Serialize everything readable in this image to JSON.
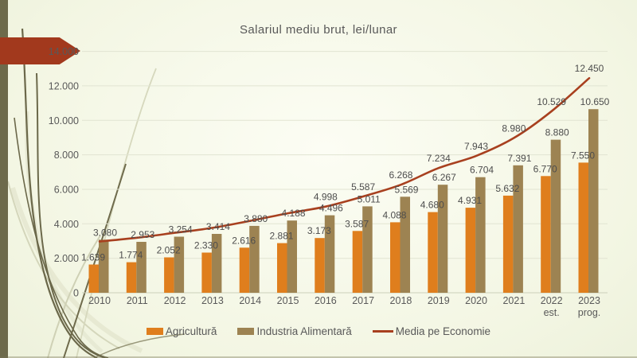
{
  "chart_data": {
    "type": "bar",
    "combo": "grouped bars with smoothed line overlay",
    "title": "Salariul mediu brut, lei/lunar",
    "categories": [
      "2010",
      "2011",
      "2012",
      "2013",
      "2014",
      "2015",
      "2016",
      "2017",
      "2018",
      "2019",
      "2020",
      "2021",
      "2022\nest.",
      "2023\nprog."
    ],
    "series": [
      {
        "name": "Agricultură",
        "type": "bar",
        "color": "#df7e1d",
        "values": [
          1639,
          1774,
          2052,
          2330,
          2616,
          2881,
          3173,
          3587,
          4088,
          4680,
          4931,
          5632,
          6770,
          7550
        ],
        "labels": [
          "1.639",
          "1.774",
          "2.052",
          "2.330",
          "2.616",
          "2.881",
          "3.173",
          "3.587",
          "4.088",
          "4.680",
          "4.931",
          "5.632",
          "6.770",
          "7.550"
        ]
      },
      {
        "name": "Industria Alimentară",
        "type": "bar",
        "color": "#9d8352",
        "values": [
          3080,
          2953,
          3254,
          3414,
          3880,
          4188,
          4496,
          5011,
          5569,
          6267,
          6704,
          7391,
          8880,
          10650
        ],
        "labels": [
          "3.080",
          "2.953",
          "3.254",
          "3.414",
          "3.880",
          "4.188",
          "4.496",
          "5.011",
          "5.569",
          "6.267",
          "6.704",
          "7.391",
          "8.880",
          "10.650"
        ]
      },
      {
        "name": "Media pe Economie",
        "type": "line",
        "color": "#a8401f",
        "values": [
          2972,
          3194,
          3478,
          3765,
          4172,
          4611,
          4998,
          5587,
          6268,
          7234,
          7943,
          8980,
          10529,
          12450
        ],
        "labels": [
          null,
          null,
          null,
          null,
          null,
          null,
          "4.998",
          "5.587",
          "6.268",
          "7.234",
          "7.943",
          "8.980",
          "10.529",
          "12.450"
        ]
      }
    ],
    "ylim": [
      0,
      14000
    ],
    "yticks": [
      0,
      2000,
      4000,
      6000,
      8000,
      10000,
      12000,
      14000
    ],
    "ytick_labels": [
      "0",
      "2.000",
      "4.000",
      "6.000",
      "8.000",
      "10.000",
      "12.000",
      "14.000"
    ],
    "grid": true,
    "legend_position": "bottom"
  },
  "decor": {
    "arrow_color": "#a2391d",
    "left_strip_color": "#6d6a4b",
    "text_color": "#595959"
  }
}
